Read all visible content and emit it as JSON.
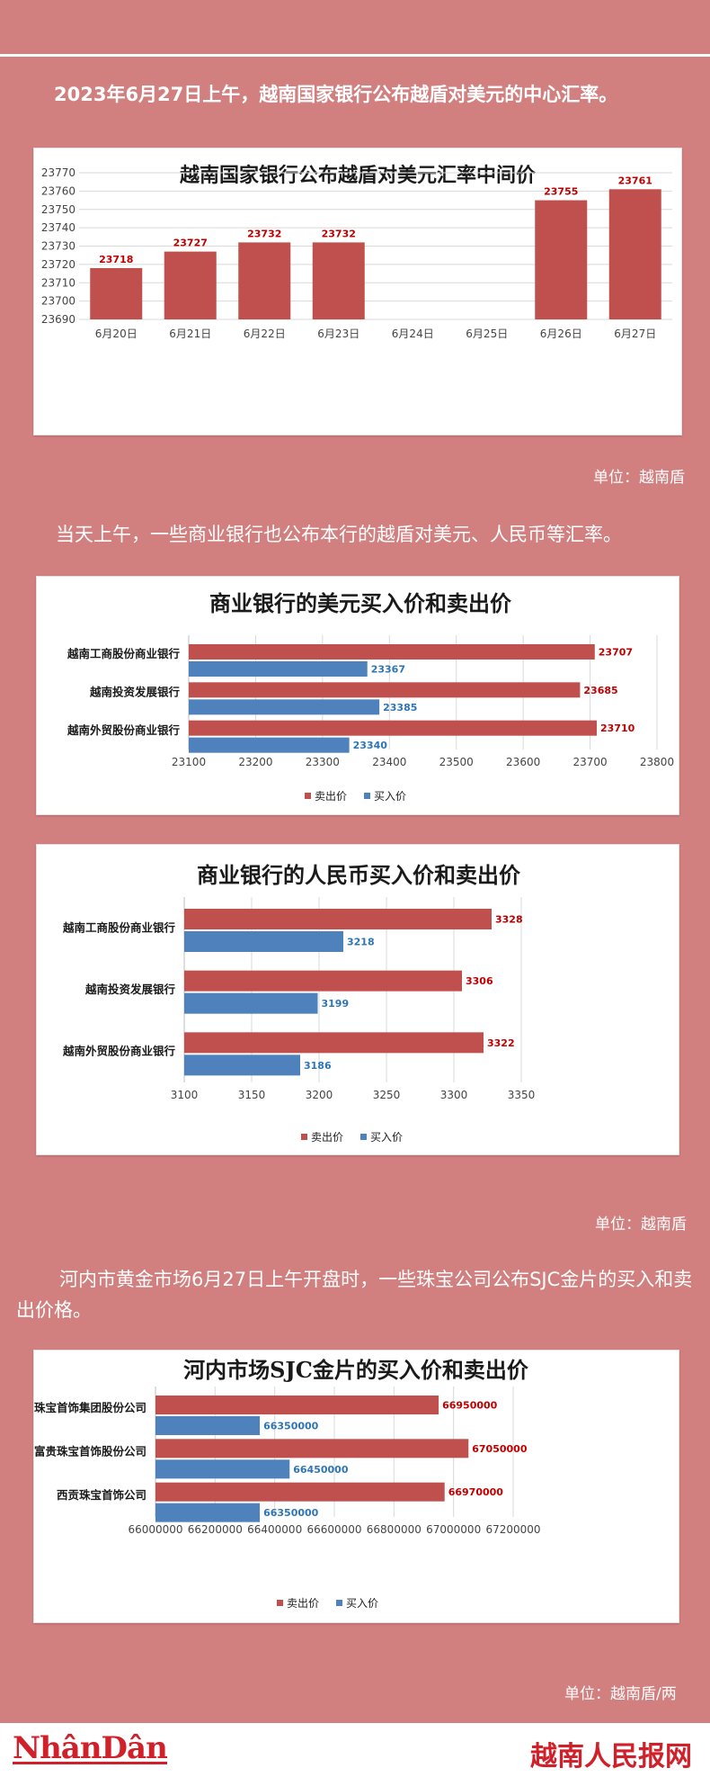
{
  "intro": "2023年6月27日上午，越南国家银行公布越盾对美元的中心汇率。",
  "unit1": "单位：越南盾",
  "para2": "当天上午，一些商业银行也公布本行的越盾对美元、人民币等汇率。",
  "unit2": "单位：越南盾",
  "para3": "河内市黄金市场6月27日上午开盘时，一些珠宝公司公布SJC金片的买入和卖出价格。",
  "unit3": "单位：越南盾/两",
  "footer": {
    "logo_left": "NhânDân",
    "logo_right": "越南人民报网"
  },
  "chart_data": [
    {
      "type": "bar",
      "title": "越南国家银行公布越盾对美元汇率中间价",
      "categories": [
        "6月20日",
        "6月21日",
        "6月22日",
        "6月23日",
        "6月24日",
        "6月25日",
        "6月26日",
        "6月27日"
      ],
      "values": [
        23718,
        23727,
        23732,
        23732,
        null,
        null,
        23755,
        23761
      ],
      "ylim": [
        23690,
        23770
      ],
      "yticks": [
        23690,
        23700,
        23710,
        23720,
        23730,
        23740,
        23750,
        23760,
        23770
      ],
      "color": "#c0504d",
      "grid": true
    },
    {
      "type": "bar",
      "orientation": "horizontal",
      "title": "商业银行的美元买入价和卖出价",
      "categories": [
        "越南工商股份商业银行",
        "越南投资发展银行",
        "越南外贸股份商业银行"
      ],
      "series": [
        {
          "name": "卖出价",
          "values": [
            23707,
            23685,
            23710
          ],
          "color": "#c0504d"
        },
        {
          "name": "买入价",
          "values": [
            23367,
            23385,
            23340
          ],
          "color": "#4f81bd"
        }
      ],
      "xlim": [
        23100,
        23800
      ],
      "xticks": [
        23100,
        23200,
        23300,
        23400,
        23500,
        23600,
        23700,
        23800
      ],
      "legend": "bottom"
    },
    {
      "type": "bar",
      "orientation": "horizontal",
      "title": "商业银行的人民币买入价和卖出价",
      "categories": [
        "越南工商股份商业银行",
        "越南投资发展银行",
        "越南外贸股份商业银行"
      ],
      "series": [
        {
          "name": "卖出价",
          "values": [
            3328,
            3306,
            3322
          ],
          "color": "#c0504d"
        },
        {
          "name": "买入价",
          "values": [
            3218,
            3199,
            3186
          ],
          "color": "#4f81bd"
        }
      ],
      "xlim": [
        3100,
        3350
      ],
      "xticks": [
        3100,
        3150,
        3200,
        3250,
        3300,
        3350
      ],
      "legend": "bottom"
    },
    {
      "type": "bar",
      "orientation": "horizontal",
      "title": "河内市场SJC金片的买入价和卖出价",
      "categories": [
        "DOJI珠宝首饰集团股份公司",
        "富贵珠宝首饰股份公司",
        "西贡珠宝首饰公司"
      ],
      "series": [
        {
          "name": "卖出价",
          "values": [
            66950000,
            67050000,
            66970000
          ],
          "color": "#c0504d"
        },
        {
          "name": "买入价",
          "values": [
            66350000,
            66450000,
            66350000
          ],
          "color": "#4f81bd"
        }
      ],
      "xlim": [
        66000000,
        67200000
      ],
      "xticks": [
        66000000,
        66200000,
        66400000,
        66600000,
        66800000,
        67000000,
        67200000
      ],
      "legend": "bottom"
    }
  ]
}
